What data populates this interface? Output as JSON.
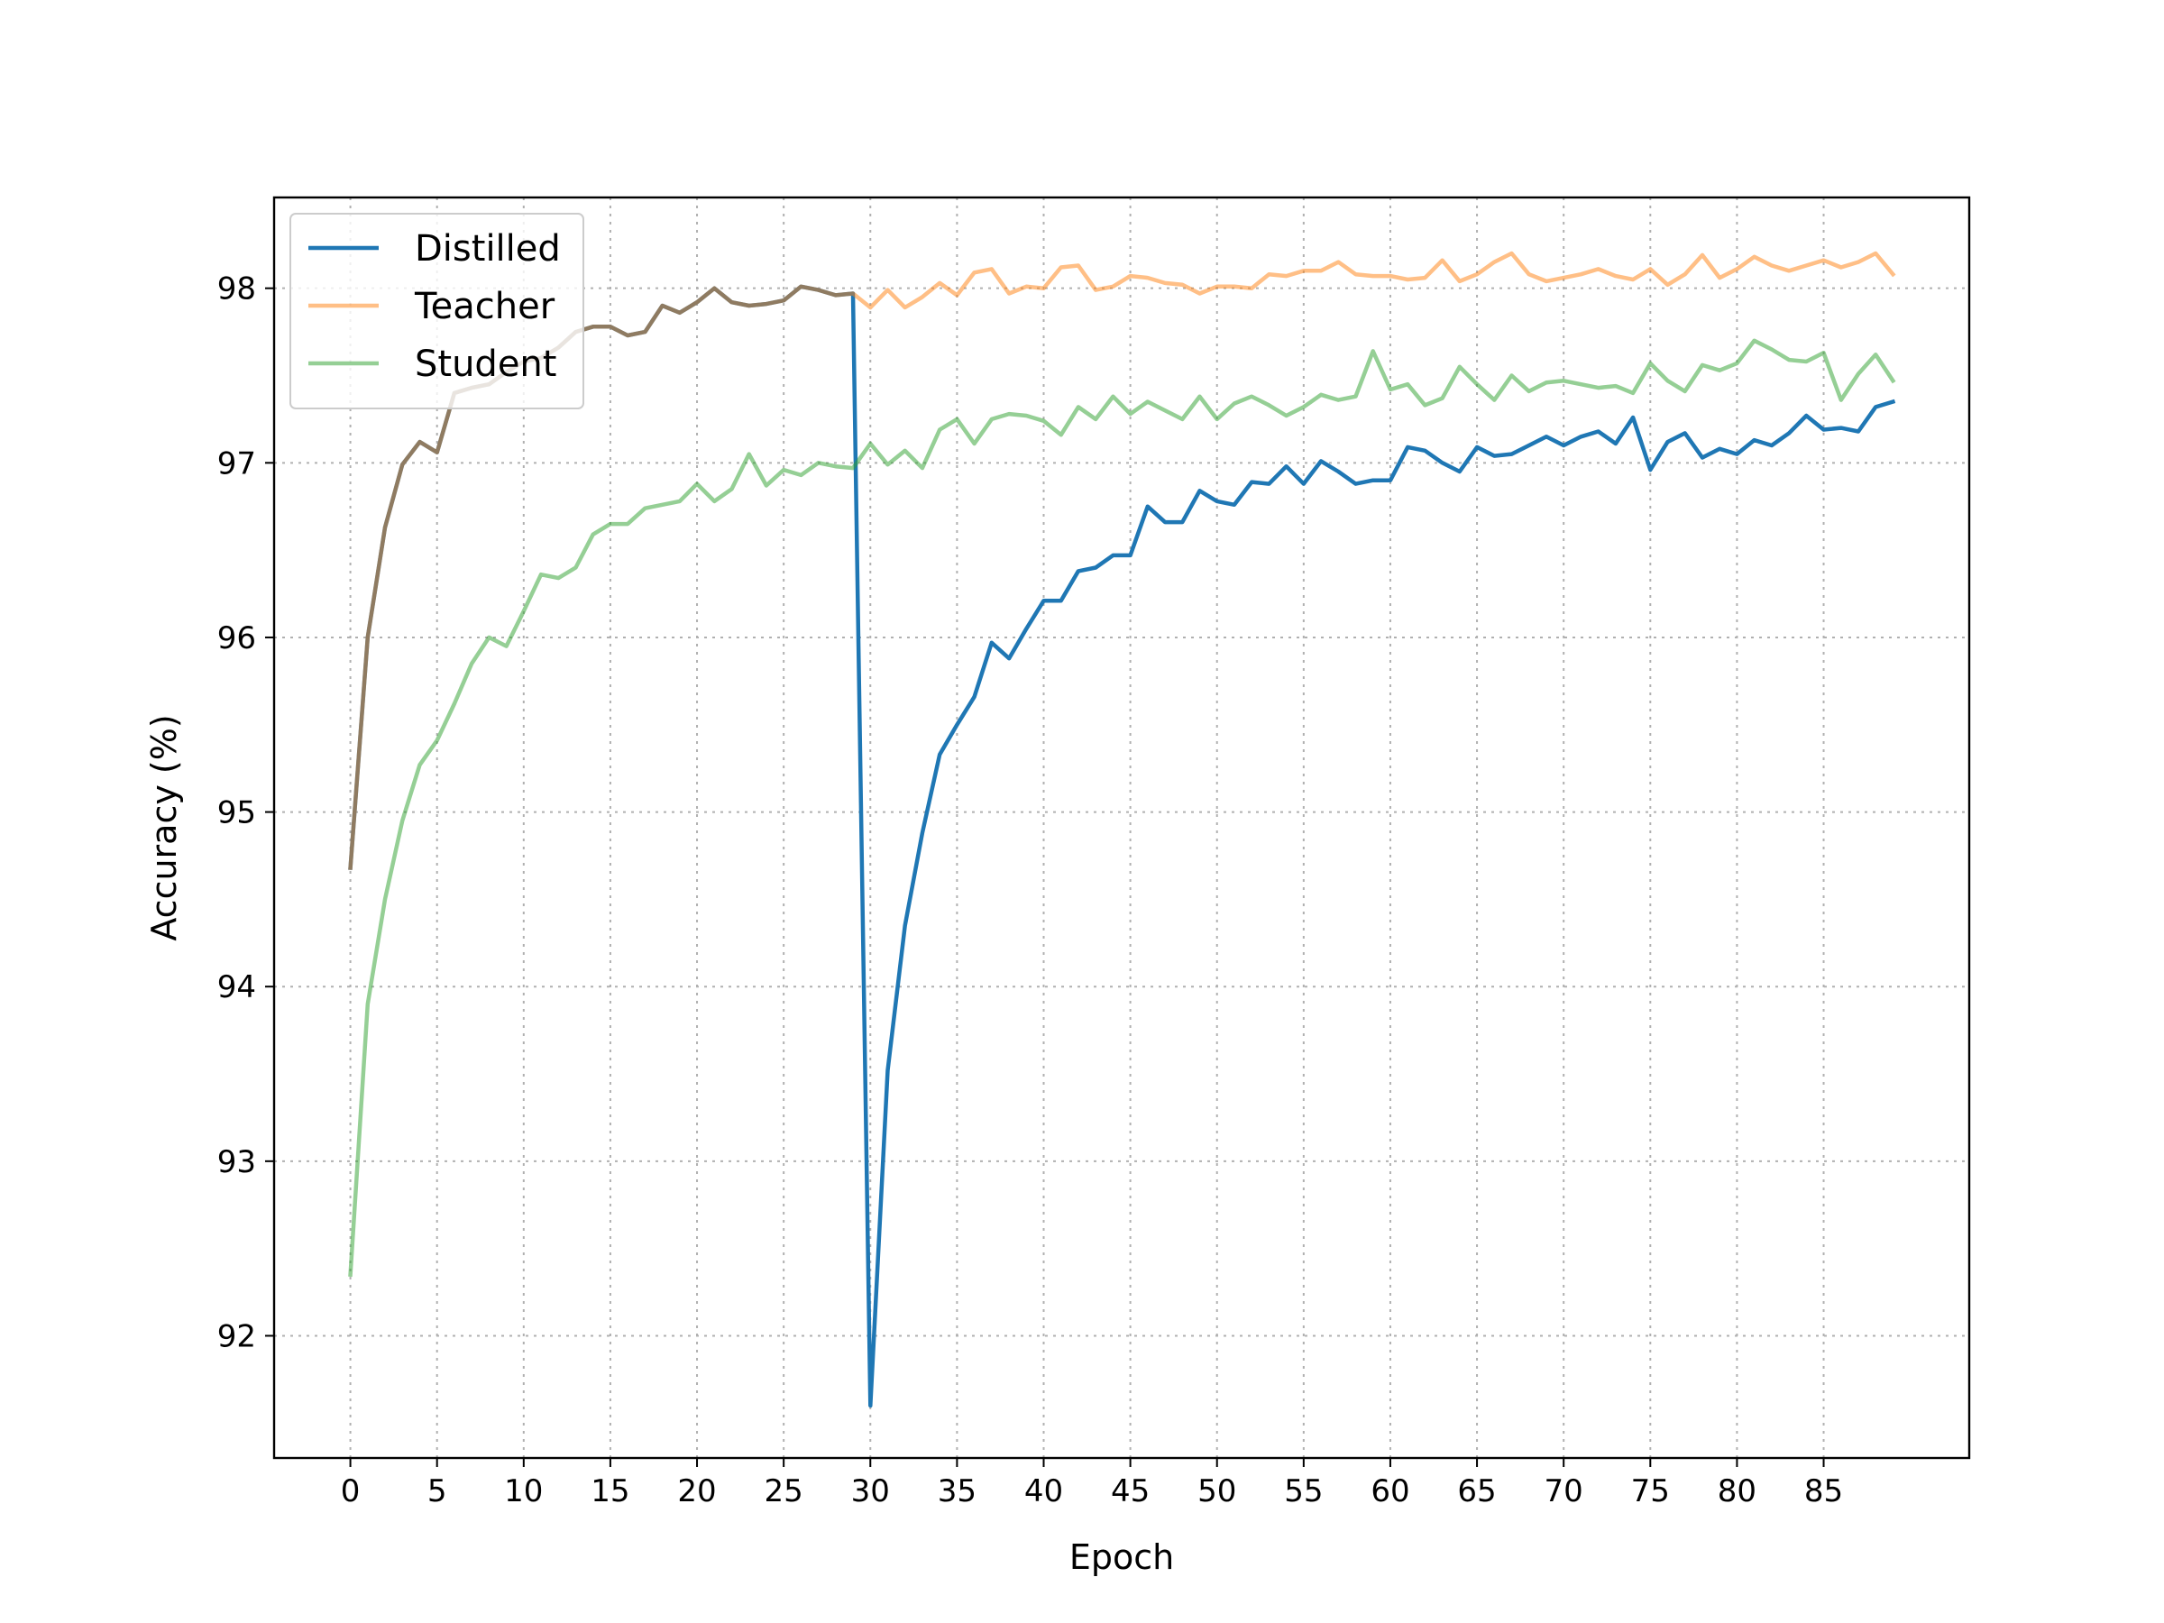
{
  "chart_data": {
    "type": "line",
    "title": "",
    "xlabel": "Epoch",
    "ylabel": "Accuracy (%)",
    "xlim": [
      -4.4,
      93.4
    ],
    "ylim": [
      91.3,
      98.52
    ],
    "xticks": [
      0,
      5,
      10,
      15,
      20,
      25,
      30,
      35,
      40,
      45,
      50,
      55,
      60,
      65,
      70,
      75,
      80,
      85
    ],
    "yticks": [
      92,
      93,
      94,
      95,
      96,
      97,
      98
    ],
    "grid": true,
    "legend": "upper left",
    "series": [
      {
        "name": "Distilled",
        "color": "#1f77b4",
        "opacity": 1.0,
        "x": [
          0,
          1,
          2,
          3,
          4,
          5,
          6,
          7,
          8,
          9,
          10,
          11,
          12,
          13,
          14,
          15,
          16,
          17,
          18,
          19,
          20,
          21,
          22,
          23,
          24,
          25,
          26,
          27,
          28,
          29,
          30,
          31,
          32,
          33,
          34,
          35,
          36,
          37,
          38,
          39,
          40,
          41,
          42,
          43,
          44,
          45,
          46,
          47,
          48,
          49,
          50,
          51,
          52,
          53,
          54,
          55,
          56,
          57,
          58,
          59,
          60,
          61,
          62,
          63,
          64,
          65,
          66,
          67,
          68,
          69,
          70,
          71,
          72,
          73,
          74,
          75,
          76,
          77,
          78,
          79,
          80,
          81,
          82,
          83,
          84,
          85,
          86,
          87,
          88,
          89
        ],
        "values": [
          94.68,
          96.0,
          96.63,
          96.99,
          97.12,
          97.06,
          97.4,
          97.43,
          97.45,
          97.52,
          97.58,
          97.6,
          97.66,
          97.75,
          97.78,
          97.78,
          97.73,
          97.75,
          97.9,
          97.86,
          97.92,
          98.0,
          97.92,
          97.9,
          97.91,
          97.93,
          98.01,
          97.99,
          97.96,
          97.97,
          91.6,
          93.52,
          94.35,
          94.88,
          95.33,
          95.5,
          95.66,
          95.97,
          95.88,
          96.05,
          96.21,
          96.21,
          96.38,
          96.4,
          96.47,
          96.47,
          96.75,
          96.66,
          96.66,
          96.84,
          96.78,
          96.76,
          96.89,
          96.88,
          96.98,
          96.88,
          97.01,
          96.95,
          96.88,
          96.9,
          96.9,
          97.09,
          97.07,
          97.0,
          96.95,
          97.09,
          97.04,
          97.05,
          97.1,
          97.15,
          97.1,
          97.15,
          97.18,
          97.11,
          97.26,
          96.96,
          97.12,
          97.17,
          97.03,
          97.08,
          97.05,
          97.13,
          97.1,
          97.17,
          97.27,
          97.19,
          97.2,
          97.18,
          97.32,
          97.35
        ]
      },
      {
        "name": "Teacher",
        "color": "#ff7f0e",
        "opacity": 0.5,
        "x": [
          0,
          1,
          2,
          3,
          4,
          5,
          6,
          7,
          8,
          9,
          10,
          11,
          12,
          13,
          14,
          15,
          16,
          17,
          18,
          19,
          20,
          21,
          22,
          23,
          24,
          25,
          26,
          27,
          28,
          29,
          30,
          31,
          32,
          33,
          34,
          35,
          36,
          37,
          38,
          39,
          40,
          41,
          42,
          43,
          44,
          45,
          46,
          47,
          48,
          49,
          50,
          51,
          52,
          53,
          54,
          55,
          56,
          57,
          58,
          59,
          60,
          61,
          62,
          63,
          64,
          65,
          66,
          67,
          68,
          69,
          70,
          71,
          72,
          73,
          74,
          75,
          76,
          77,
          78,
          79,
          80,
          81,
          82,
          83,
          84,
          85,
          86,
          87,
          88,
          89
        ],
        "values": [
          94.68,
          96.0,
          96.63,
          96.99,
          97.12,
          97.06,
          97.4,
          97.43,
          97.45,
          97.52,
          97.58,
          97.6,
          97.66,
          97.75,
          97.78,
          97.78,
          97.73,
          97.75,
          97.9,
          97.86,
          97.92,
          98.0,
          97.92,
          97.9,
          97.91,
          97.93,
          98.01,
          97.99,
          97.96,
          97.97,
          97.89,
          97.99,
          97.89,
          97.95,
          98.03,
          97.96,
          98.09,
          98.11,
          97.97,
          98.01,
          98.0,
          98.12,
          98.13,
          97.99,
          98.01,
          98.07,
          98.06,
          98.03,
          98.02,
          97.97,
          98.01,
          98.01,
          98.0,
          98.08,
          98.07,
          98.1,
          98.1,
          98.15,
          98.08,
          98.07,
          98.07,
          98.05,
          98.06,
          98.16,
          98.04,
          98.08,
          98.15,
          98.2,
          98.08,
          98.04,
          98.06,
          98.08,
          98.11,
          98.07,
          98.05,
          98.11,
          98.02,
          98.08,
          98.19,
          98.06,
          98.11,
          98.18,
          98.13,
          98.1,
          98.13,
          98.16,
          98.12,
          98.15,
          98.2,
          98.08
        ]
      },
      {
        "name": "Student",
        "color": "#2ca02c",
        "opacity": 0.5,
        "x": [
          0,
          1,
          2,
          3,
          4,
          5,
          6,
          7,
          8,
          9,
          10,
          11,
          12,
          13,
          14,
          15,
          16,
          17,
          18,
          19,
          20,
          21,
          22,
          23,
          24,
          25,
          26,
          27,
          28,
          29,
          30,
          31,
          32,
          33,
          34,
          35,
          36,
          37,
          38,
          39,
          40,
          41,
          42,
          43,
          44,
          45,
          46,
          47,
          48,
          49,
          50,
          51,
          52,
          53,
          54,
          55,
          56,
          57,
          58,
          59,
          60,
          61,
          62,
          63,
          64,
          65,
          66,
          67,
          68,
          69,
          70,
          71,
          72,
          73,
          74,
          75,
          76,
          77,
          78,
          79,
          80,
          81,
          82,
          83,
          84,
          85,
          86,
          87,
          88,
          89
        ],
        "values": [
          92.35,
          93.9,
          94.5,
          94.95,
          95.27,
          95.41,
          95.62,
          95.85,
          96.0,
          95.95,
          96.15,
          96.36,
          96.34,
          96.4,
          96.59,
          96.65,
          96.65,
          96.74,
          96.76,
          96.78,
          96.88,
          96.78,
          96.85,
          97.05,
          96.87,
          96.96,
          96.93,
          97.0,
          96.98,
          96.97,
          97.11,
          96.99,
          97.07,
          96.97,
          97.19,
          97.25,
          97.11,
          97.25,
          97.28,
          97.27,
          97.24,
          97.16,
          97.32,
          97.25,
          97.38,
          97.28,
          97.35,
          97.3,
          97.25,
          97.38,
          97.25,
          97.34,
          97.38,
          97.33,
          97.27,
          97.32,
          97.39,
          97.36,
          97.38,
          97.64,
          97.42,
          97.45,
          97.33,
          97.37,
          97.55,
          97.45,
          97.36,
          97.5,
          97.41,
          97.46,
          97.47,
          97.45,
          97.43,
          97.44,
          97.4,
          97.57,
          97.47,
          97.41,
          97.56,
          97.53,
          97.57,
          97.7,
          97.65,
          97.59,
          97.58,
          97.63,
          97.36,
          97.51,
          97.62,
          97.47
        ]
      }
    ]
  }
}
